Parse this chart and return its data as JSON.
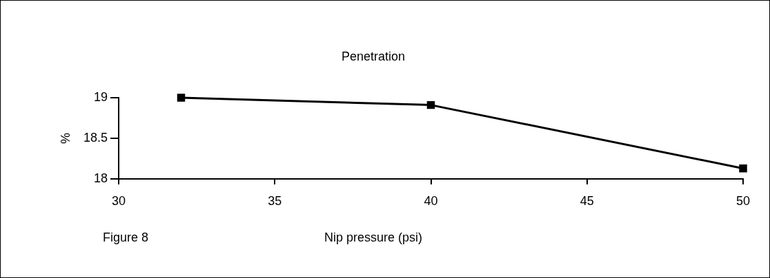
{
  "chart_data": {
    "type": "line",
    "title": "Penetration",
    "xlabel": "Nip pressure (psi)",
    "ylabel": "%",
    "x": [
      32,
      40,
      50
    ],
    "values": [
      19.0,
      18.91,
      18.13
    ],
    "color": "#000000",
    "xlim": [
      30,
      50
    ],
    "xticks": [
      30,
      35,
      40,
      45,
      50
    ],
    "ylim": [
      18,
      19
    ],
    "yticks": [
      18,
      18.5,
      19
    ],
    "grid": false,
    "legend": false,
    "marker": "square",
    "line_style": "solid",
    "annotations": [
      "Figure 8"
    ]
  }
}
